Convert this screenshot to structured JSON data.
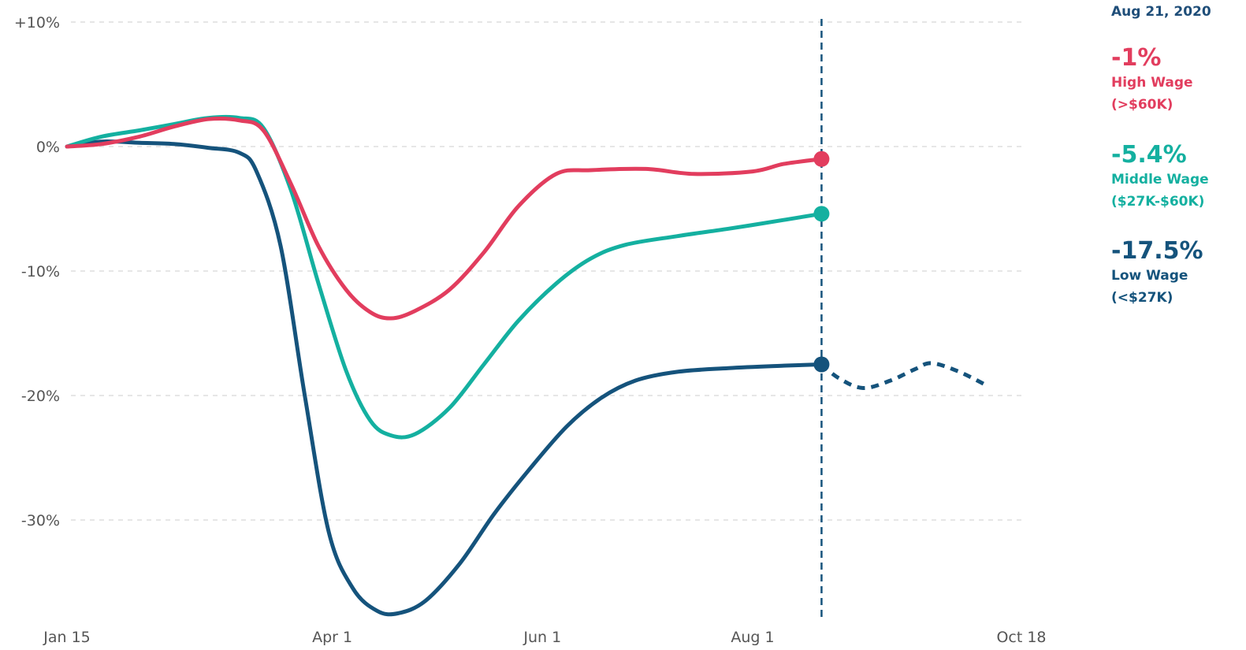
{
  "chart_data": {
    "type": "line",
    "ylim": [
      -38,
      10
    ],
    "yticks": [
      {
        "value": 10,
        "label": "+10%"
      },
      {
        "value": 0,
        "label": "0%"
      },
      {
        "value": -10,
        "label": "-10%"
      },
      {
        "value": -20,
        "label": "-20%"
      },
      {
        "value": -30,
        "label": "-30%"
      }
    ],
    "xticks": [
      "Jan 15",
      "Apr 1",
      "Jun 1",
      "Aug 1",
      "Oct 18"
    ],
    "marker_date": "Aug 21, 2020",
    "grid": true,
    "legend_position": "right",
    "series": [
      {
        "name": "High Wage (>$60K)",
        "value_label": "-1%",
        "label_line1": "High Wage",
        "label_line2": "(>$60K)",
        "color": "#e23d5e",
        "points": [
          [
            "Jan 15",
            0
          ],
          [
            "Jan 25",
            0.2
          ],
          [
            "Feb 5",
            0.8
          ],
          [
            "Feb 15",
            1.6
          ],
          [
            "Feb 25",
            2.2
          ],
          [
            "Mar 5",
            2.1
          ],
          [
            "Mar 12",
            1.3
          ],
          [
            "Mar 20",
            -3
          ],
          [
            "Mar 28",
            -8
          ],
          [
            "Apr 5",
            -11.5
          ],
          [
            "Apr 12",
            -13.3
          ],
          [
            "Apr 18",
            -13.8
          ],
          [
            "Apr 25",
            -13.2
          ],
          [
            "May 5",
            -11.5
          ],
          [
            "May 15",
            -8.5
          ],
          [
            "May 25",
            -4.8
          ],
          [
            "Jun 5",
            -2.2
          ],
          [
            "Jun 15",
            -1.9
          ],
          [
            "Jul 1",
            -1.8
          ],
          [
            "Jul 15",
            -2.2
          ],
          [
            "Aug 1",
            -2.0
          ],
          [
            "Aug 10",
            -1.4
          ],
          [
            "Aug 21",
            -1.0
          ]
        ]
      },
      {
        "name": "Middle Wage ($27K-$60K)",
        "value_label": "-5.4%",
        "label_line1": "Middle Wage",
        "label_line2": "($27K-$60K)",
        "color": "#14b0a0",
        "points": [
          [
            "Jan 15",
            0
          ],
          [
            "Jan 25",
            0.8
          ],
          [
            "Feb 5",
            1.3
          ],
          [
            "Feb 15",
            1.8
          ],
          [
            "Feb 25",
            2.3
          ],
          [
            "Mar 5",
            2.3
          ],
          [
            "Mar 12",
            1.5
          ],
          [
            "Mar 20",
            -3.5
          ],
          [
            "Mar 28",
            -11
          ],
          [
            "Apr 5",
            -18
          ],
          [
            "Apr 12",
            -22
          ],
          [
            "Apr 18",
            -23.2
          ],
          [
            "Apr 25",
            -23.1
          ],
          [
            "May 5",
            -21
          ],
          [
            "May 15",
            -17.5
          ],
          [
            "May 25",
            -14
          ],
          [
            "Jun 5",
            -11
          ],
          [
            "Jun 15",
            -9
          ],
          [
            "Jun 25",
            -7.9
          ],
          [
            "Jul 10",
            -7.2
          ],
          [
            "Jul 25",
            -6.6
          ],
          [
            "Aug 10",
            -5.9
          ],
          [
            "Aug 21",
            -5.4
          ]
        ]
      },
      {
        "name": "Low Wage (<$27K)",
        "value_label": "-17.5%",
        "label_line1": "Low Wage",
        "label_line2": "(<$27K)",
        "color": "#15537c",
        "points": [
          [
            "Jan 15",
            0
          ],
          [
            "Jan 25",
            0.4
          ],
          [
            "Feb 5",
            0.3
          ],
          [
            "Feb 15",
            0.2
          ],
          [
            "Feb 25",
            -0.1
          ],
          [
            "Mar 5",
            -0.5
          ],
          [
            "Mar 10",
            -2
          ],
          [
            "Mar 17",
            -8
          ],
          [
            "Mar 24",
            -20
          ],
          [
            "Mar 31",
            -31
          ],
          [
            "Apr 7",
            -35.5
          ],
          [
            "Apr 14",
            -37.3
          ],
          [
            "Apr 20",
            -37.5
          ],
          [
            "Apr 28",
            -36.5
          ],
          [
            "May 8",
            -33.5
          ],
          [
            "May 18",
            -29.5
          ],
          [
            "May 28",
            -26
          ],
          [
            "Jun 8",
            -22.5
          ],
          [
            "Jun 18",
            -20.2
          ],
          [
            "Jun 28",
            -18.8
          ],
          [
            "Jul 10",
            -18.1
          ],
          [
            "Jul 25",
            -17.8
          ],
          [
            "Aug 10",
            -17.6
          ],
          [
            "Aug 21",
            -17.5
          ]
        ],
        "forecast": [
          [
            "Aug 21",
            -17.5
          ],
          [
            "Aug 26",
            -18.6
          ],
          [
            "Sep 2",
            -19.4
          ],
          [
            "Sep 10",
            -18.8
          ],
          [
            "Sep 17",
            -17.9
          ],
          [
            "Sep 22",
            -17.4
          ],
          [
            "Sep 30",
            -18.1
          ],
          [
            "Oct 8",
            -19.2
          ]
        ]
      }
    ]
  }
}
